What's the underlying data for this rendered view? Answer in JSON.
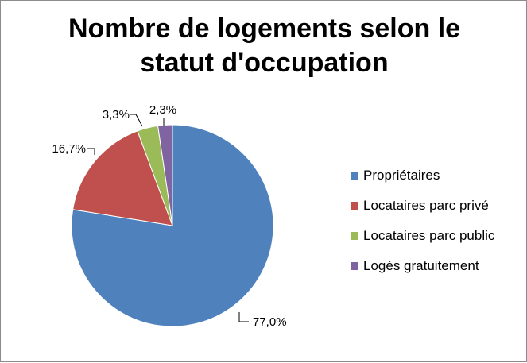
{
  "chart_data": {
    "type": "pie",
    "title_lines": [
      "Nombre de logements selon le",
      "statut d'occupation"
    ],
    "categories": [
      "Propriétaires",
      "Locataires parc privé",
      "Locataires parc public",
      "Logés gratuitement"
    ],
    "values": [
      77.0,
      16.7,
      3.3,
      2.3
    ],
    "value_labels": [
      "77,0%",
      "16,7%",
      "3,3%",
      "2,3%"
    ],
    "colors": [
      "#4f81bd",
      "#c0504d",
      "#9bbb59",
      "#8064a2"
    ],
    "start_angle": "12 o'clock, clockwise",
    "legend_position": "right"
  }
}
